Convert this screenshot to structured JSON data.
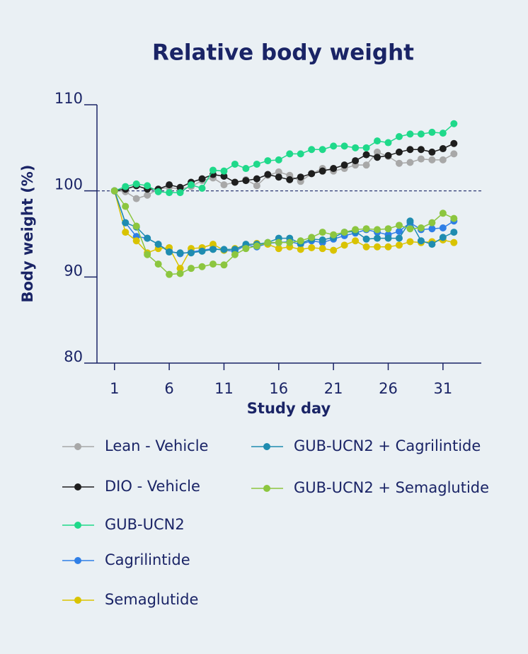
{
  "chart_data": {
    "type": "line",
    "title": "Relative body weight",
    "x_label": "Study day",
    "y_label": "Body weight (%)",
    "x": [
      1,
      2,
      3,
      4,
      5,
      6,
      7,
      8,
      9,
      10,
      11,
      12,
      13,
      14,
      15,
      16,
      17,
      18,
      19,
      20,
      21,
      22,
      23,
      24,
      25,
      26,
      27,
      28,
      29,
      30,
      31,
      32
    ],
    "xlim": [
      -0.6,
      34.5
    ],
    "xticks": [
      1,
      6,
      11,
      16,
      21,
      26,
      31
    ],
    "ylim": [
      80,
      110
    ],
    "yticks": [
      80,
      90,
      100,
      110
    ],
    "reference_line": 100,
    "series": [
      {
        "name": "Lean - Vehicle",
        "color": "#a8a8a8",
        "values": [
          100,
          99.9,
          99.1,
          99.5,
          100.2,
          100.4,
          100.2,
          100.5,
          101.2,
          101.5,
          100.7,
          101.0,
          101.3,
          100.6,
          101.8,
          102.2,
          101.8,
          101.1,
          102.0,
          102.6,
          102.3,
          102.6,
          103.0,
          103.0,
          104.5,
          104.0,
          103.2,
          103.3,
          103.7,
          103.6,
          103.6,
          104.3
        ]
      },
      {
        "name": "DIO - Vehicle",
        "color": "#1e1e1e",
        "values": [
          100,
          100.2,
          100.6,
          100.2,
          100.2,
          100.7,
          100.4,
          101.0,
          101.4,
          101.9,
          101.7,
          101.0,
          101.2,
          101.4,
          101.9,
          101.6,
          101.3,
          101.6,
          102.0,
          102.3,
          102.6,
          103.0,
          103.5,
          104.2,
          103.9,
          104.1,
          104.5,
          104.8,
          104.8,
          104.5,
          104.9,
          105.5
        ]
      },
      {
        "name": "GUB-UCN2",
        "color": "#1fd98a",
        "values": [
          100,
          100.5,
          100.8,
          100.6,
          99.9,
          99.8,
          99.8,
          100.7,
          100.3,
          102.4,
          102.3,
          103.1,
          102.6,
          103.1,
          103.5,
          103.6,
          104.3,
          104.3,
          104.8,
          104.8,
          105.2,
          105.2,
          105.0,
          105.0,
          105.8,
          105.6,
          106.3,
          106.6,
          106.6,
          106.8,
          106.7,
          107.8
        ]
      },
      {
        "name": "Cagrilintide",
        "color": "#2f7fe6",
        "values": [
          100,
          96.3,
          94.7,
          94.5,
          93.8,
          93.0,
          92.7,
          92.9,
          93.1,
          93.3,
          93.1,
          93.0,
          93.7,
          93.5,
          93.9,
          94.0,
          94.1,
          93.8,
          94.2,
          94.0,
          94.4,
          94.8,
          95.1,
          95.5,
          95.2,
          94.9,
          95.3,
          96.3,
          95.5,
          95.6,
          95.7,
          96.5
        ]
      },
      {
        "name": "Semaglutide",
        "color": "#d9c300",
        "values": [
          100,
          95.2,
          94.2,
          92.8,
          93.3,
          93.4,
          91.0,
          93.3,
          93.4,
          93.8,
          93.1,
          93.3,
          93.7,
          93.9,
          93.8,
          93.3,
          93.5,
          93.2,
          93.4,
          93.3,
          93.1,
          93.7,
          94.2,
          93.5,
          93.5,
          93.5,
          93.7,
          94.1,
          94.0,
          94.1,
          94.3,
          94.0
        ]
      },
      {
        "name": "GUB-UCN2 + Cagrilintide",
        "color": "#1f8cb0",
        "values": [
          100,
          96.3,
          95.8,
          94.5,
          93.8,
          92.9,
          92.8,
          92.8,
          93.0,
          93.2,
          93.2,
          93.2,
          93.8,
          93.8,
          94.0,
          94.5,
          94.5,
          93.9,
          94.4,
          94.3,
          94.6,
          95.2,
          95.3,
          94.4,
          94.5,
          94.5,
          94.5,
          96.5,
          94.2,
          93.8,
          94.6,
          95.2
        ]
      },
      {
        "name": "GUB-UCN2 + Semaglutide",
        "color": "#8cc63f",
        "values": [
          100,
          98.2,
          95.9,
          92.6,
          91.5,
          90.3,
          90.4,
          91.0,
          91.2,
          91.5,
          91.4,
          92.6,
          93.3,
          93.6,
          94.0,
          94.0,
          94.0,
          94.2,
          94.6,
          95.2,
          94.9,
          95.2,
          95.5,
          95.6,
          95.5,
          95.6,
          96.0,
          95.6,
          95.7,
          96.3,
          97.4,
          96.8
        ]
      }
    ]
  }
}
